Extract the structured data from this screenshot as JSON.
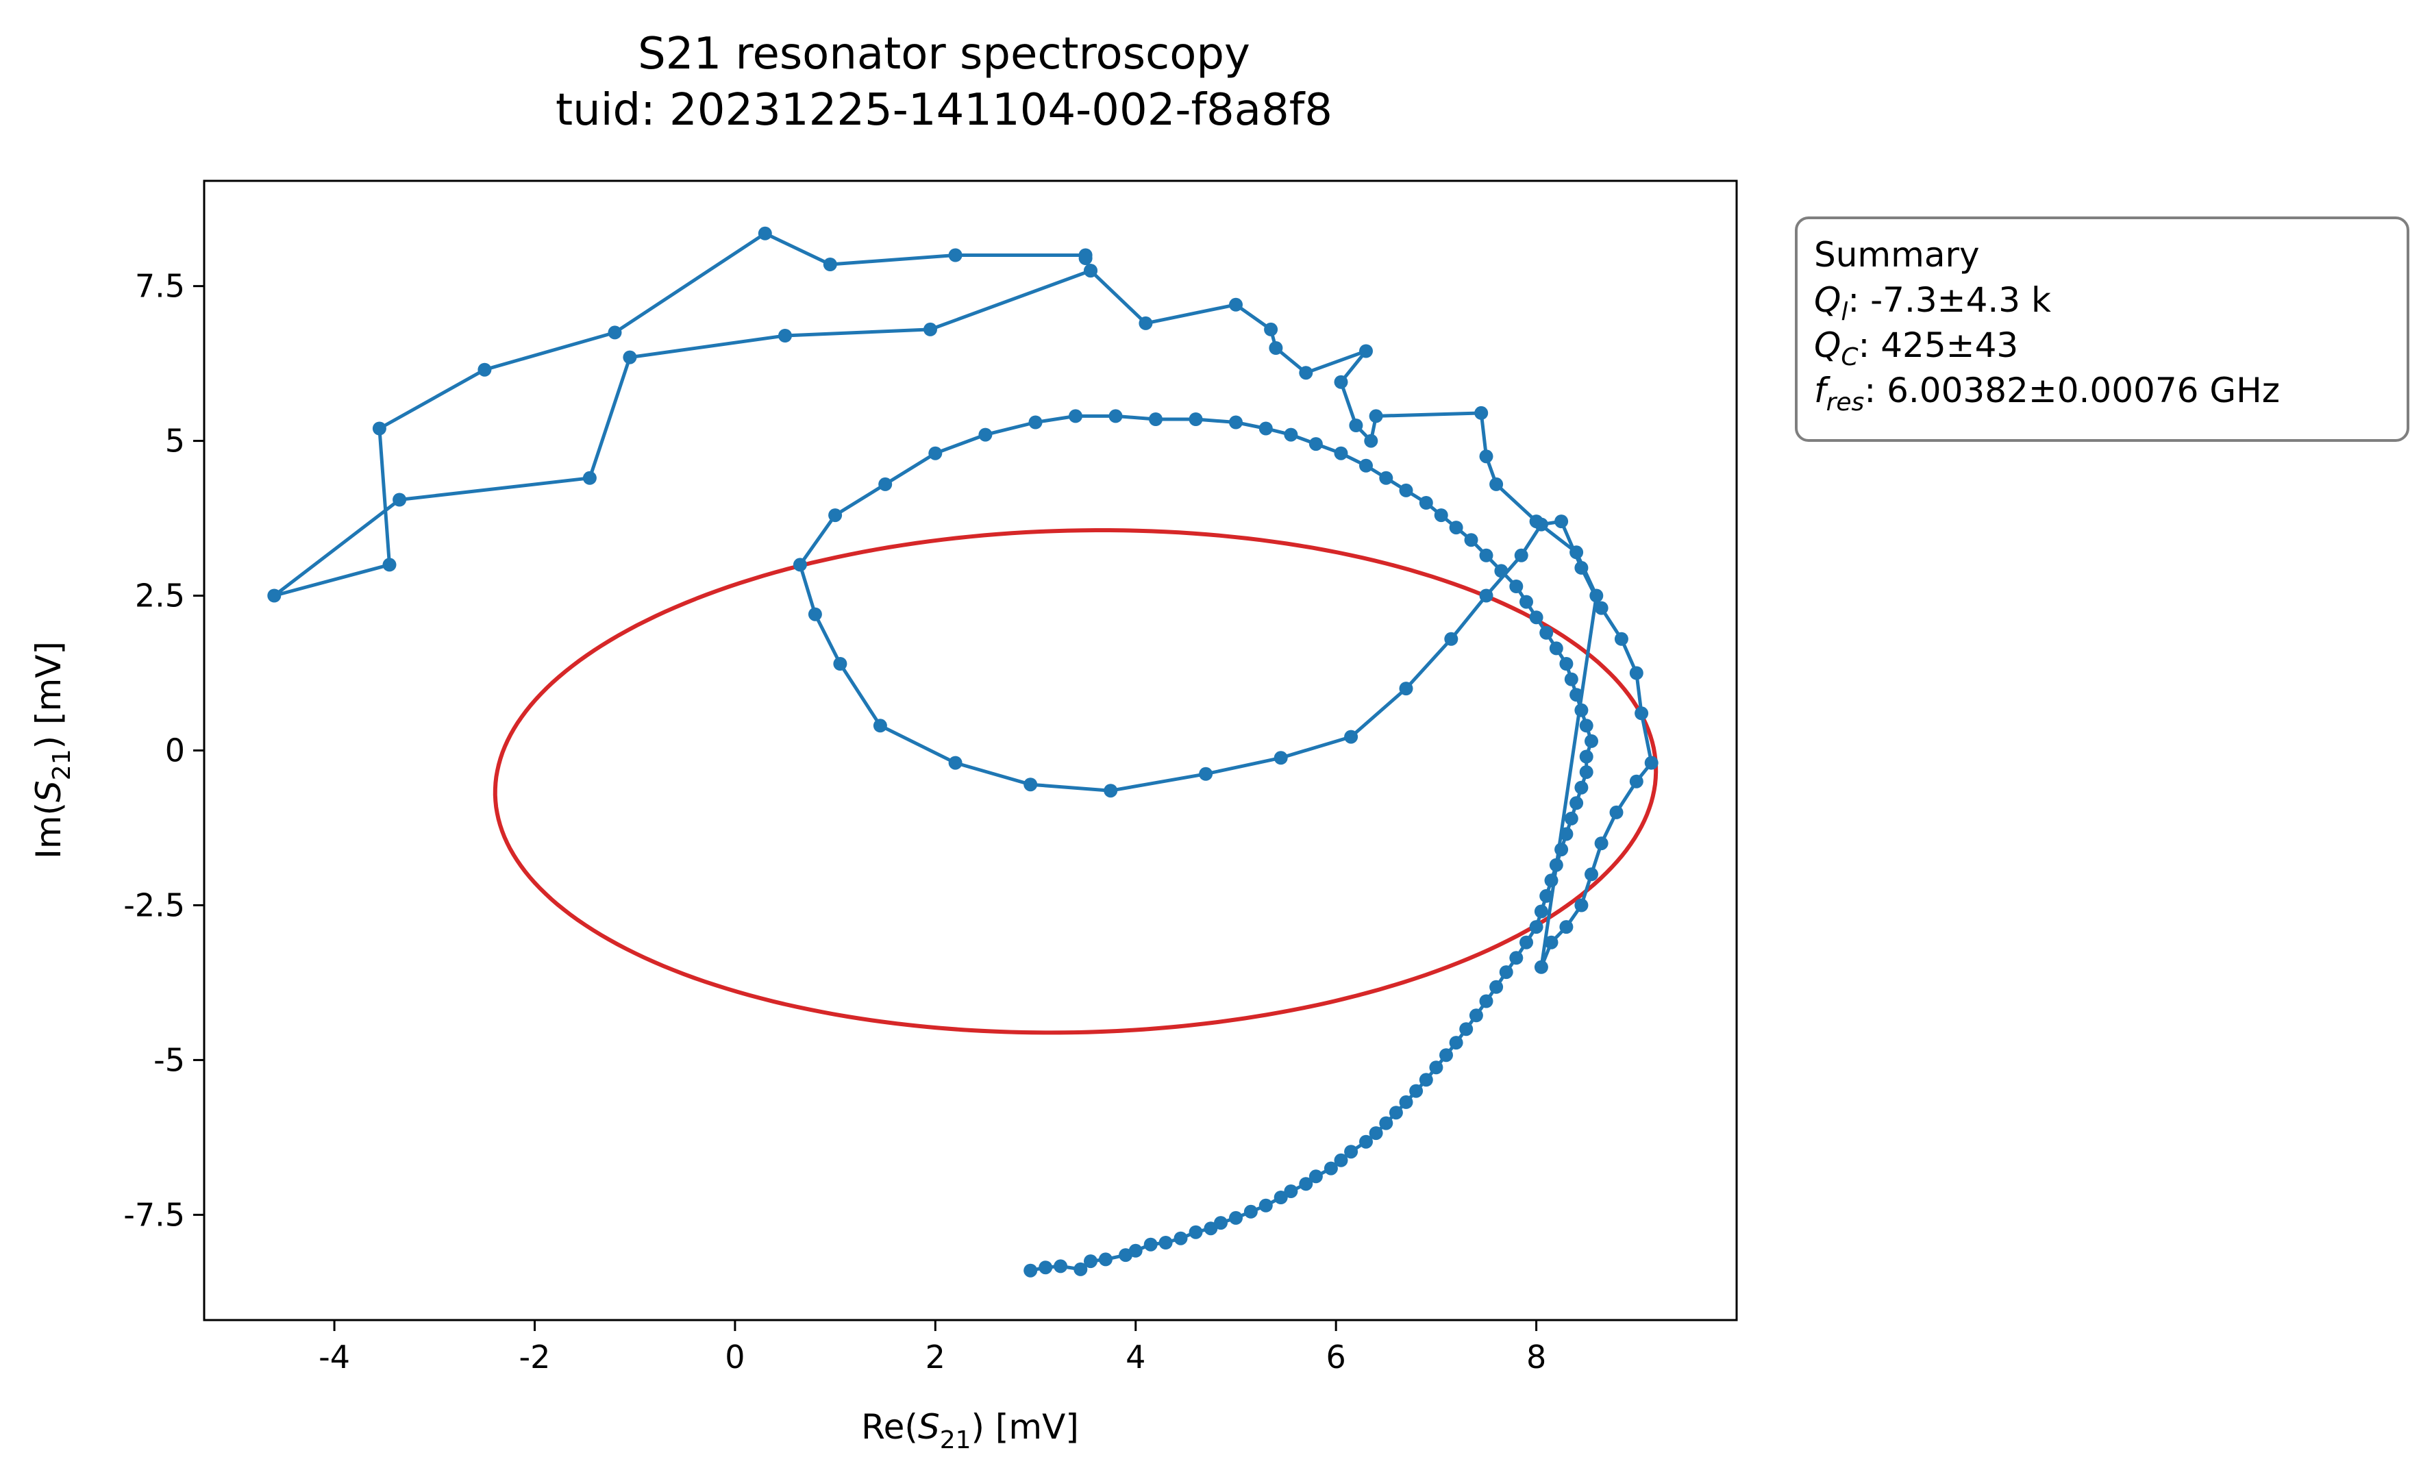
{
  "chart_data": {
    "type": "line",
    "title": "S21 resonator spectroscopy",
    "subtitle": "tuid: 20231225-141104-002-f8a8f8",
    "xlabel": {
      "prefix": "Re(",
      "var": "S",
      "sub": "21",
      "suffix": ") [mV]"
    },
    "ylabel": {
      "prefix": "Im(",
      "var": "S",
      "sub": "21",
      "suffix": ") [mV]"
    },
    "xlim": [
      -5.3,
      10.0
    ],
    "ylim": [
      -9.2,
      9.2
    ],
    "xticks": [
      -4,
      -2,
      0,
      2,
      4,
      6,
      8
    ],
    "xtick_labels": [
      "-4",
      "-2",
      "0",
      "2",
      "4",
      "6",
      "8"
    ],
    "yticks": [
      -7.5,
      -5,
      -2.5,
      0,
      2.5,
      5,
      7.5
    ],
    "ytick_labels": [
      "-7.5",
      "-5",
      "-2.5",
      "0",
      "2.5",
      "5",
      "7.5"
    ],
    "grid": false,
    "series": [
      {
        "color": "#1f77b4",
        "marker": "circle",
        "points": [
          [
            2.95,
            -8.4
          ],
          [
            3.1,
            -8.35
          ],
          [
            3.25,
            -8.33
          ],
          [
            3.45,
            -8.38
          ],
          [
            3.55,
            -8.25
          ],
          [
            3.7,
            -8.22
          ],
          [
            3.9,
            -8.15
          ],
          [
            4.0,
            -8.08
          ],
          [
            4.15,
            -7.98
          ],
          [
            4.3,
            -7.95
          ],
          [
            4.45,
            -7.88
          ],
          [
            4.6,
            -7.78
          ],
          [
            4.75,
            -7.72
          ],
          [
            4.85,
            -7.63
          ],
          [
            5.0,
            -7.55
          ],
          [
            5.15,
            -7.45
          ],
          [
            5.3,
            -7.35
          ],
          [
            5.45,
            -7.22
          ],
          [
            5.55,
            -7.12
          ],
          [
            5.7,
            -7.0
          ],
          [
            5.8,
            -6.88
          ],
          [
            5.95,
            -6.75
          ],
          [
            6.05,
            -6.62
          ],
          [
            6.15,
            -6.48
          ],
          [
            6.3,
            -6.32
          ],
          [
            6.4,
            -6.18
          ],
          [
            6.5,
            -6.02
          ],
          [
            6.6,
            -5.85
          ],
          [
            6.7,
            -5.68
          ],
          [
            6.8,
            -5.5
          ],
          [
            6.9,
            -5.32
          ],
          [
            7.0,
            -5.12
          ],
          [
            7.1,
            -4.92
          ],
          [
            7.2,
            -4.72
          ],
          [
            7.3,
            -4.5
          ],
          [
            7.4,
            -4.28
          ],
          [
            7.5,
            -4.05
          ],
          [
            7.6,
            -3.82
          ],
          [
            7.7,
            -3.58
          ],
          [
            7.8,
            -3.35
          ],
          [
            7.9,
            -3.1
          ],
          [
            8.0,
            -2.85
          ],
          [
            8.05,
            -2.6
          ],
          [
            8.1,
            -2.35
          ],
          [
            8.15,
            -2.1
          ],
          [
            8.2,
            -1.85
          ],
          [
            8.25,
            -1.6
          ],
          [
            8.3,
            -1.35
          ],
          [
            8.35,
            -1.1
          ],
          [
            8.4,
            -0.85
          ],
          [
            8.45,
            -0.6
          ],
          [
            8.5,
            -0.35
          ],
          [
            8.5,
            -0.1
          ],
          [
            8.55,
            0.15
          ],
          [
            8.5,
            0.4
          ],
          [
            8.45,
            0.65
          ],
          [
            8.4,
            0.9
          ],
          [
            8.35,
            1.15
          ],
          [
            8.3,
            1.4
          ],
          [
            8.2,
            1.65
          ],
          [
            8.1,
            1.9
          ],
          [
            8.0,
            2.15
          ],
          [
            7.9,
            2.4
          ],
          [
            7.8,
            2.65
          ],
          [
            7.65,
            2.9
          ],
          [
            7.5,
            3.15
          ],
          [
            7.35,
            3.4
          ],
          [
            7.2,
            3.6
          ],
          [
            7.05,
            3.8
          ],
          [
            6.9,
            4.0
          ],
          [
            6.7,
            4.2
          ],
          [
            6.5,
            4.4
          ],
          [
            6.3,
            4.6
          ],
          [
            6.05,
            4.8
          ],
          [
            5.8,
            4.95
          ],
          [
            5.55,
            5.1
          ],
          [
            5.3,
            5.2
          ],
          [
            5.0,
            5.3
          ],
          [
            4.6,
            5.35
          ],
          [
            4.2,
            5.35
          ],
          [
            3.8,
            5.4
          ],
          [
            3.4,
            5.4
          ],
          [
            3.0,
            5.3
          ],
          [
            2.5,
            5.1
          ],
          [
            2.0,
            4.8
          ],
          [
            1.5,
            4.3
          ],
          [
            1.0,
            3.8
          ],
          [
            0.65,
            3.0
          ],
          [
            0.8,
            2.2
          ],
          [
            1.05,
            1.4
          ],
          [
            1.45,
            0.4
          ],
          [
            2.2,
            -0.2
          ],
          [
            2.95,
            -0.55
          ],
          [
            3.75,
            -0.65
          ],
          [
            4.7,
            -0.38
          ],
          [
            5.45,
            -0.12
          ],
          [
            6.15,
            0.22
          ],
          [
            6.7,
            1.0
          ],
          [
            7.15,
            1.8
          ],
          [
            7.5,
            2.5
          ],
          [
            7.85,
            3.15
          ],
          [
            8.05,
            3.65
          ],
          [
            8.25,
            3.7
          ],
          [
            8.45,
            2.95
          ],
          [
            8.65,
            2.3
          ],
          [
            8.85,
            1.8
          ],
          [
            9.0,
            1.25
          ],
          [
            9.05,
            0.6
          ],
          [
            9.15,
            -0.2
          ],
          [
            9.0,
            -0.5
          ],
          [
            8.8,
            -1.0
          ],
          [
            8.65,
            -1.5
          ],
          [
            8.55,
            -2.0
          ],
          [
            8.45,
            -2.5
          ],
          [
            8.3,
            -2.85
          ],
          [
            8.15,
            -3.1
          ],
          [
            8.05,
            -3.5
          ],
          [
            8.6,
            2.5
          ],
          [
            8.4,
            3.2
          ],
          [
            8.0,
            3.7
          ],
          [
            7.6,
            4.3
          ],
          [
            7.5,
            4.75
          ],
          [
            7.45,
            5.45
          ],
          [
            6.4,
            5.4
          ],
          [
            6.35,
            5.0
          ],
          [
            6.2,
            5.25
          ],
          [
            6.05,
            5.95
          ],
          [
            6.3,
            6.45
          ],
          [
            5.7,
            6.1
          ],
          [
            5.4,
            6.5
          ],
          [
            5.35,
            6.8
          ],
          [
            5.0,
            7.2
          ],
          [
            4.1,
            6.9
          ],
          [
            3.55,
            7.75
          ],
          [
            3.5,
            7.95
          ],
          [
            3.5,
            8.0
          ],
          [
            2.2,
            8.0
          ],
          [
            0.95,
            7.85
          ],
          [
            0.3,
            8.35
          ],
          [
            -1.2,
            6.75
          ],
          [
            -2.5,
            6.15
          ],
          [
            -3.55,
            5.2
          ],
          [
            -3.45,
            3.0
          ],
          [
            -4.6,
            2.5
          ],
          [
            -3.35,
            4.05
          ],
          [
            -1.45,
            4.4
          ],
          [
            -1.05,
            6.35
          ],
          [
            0.5,
            6.7
          ],
          [
            1.95,
            6.8
          ],
          [
            3.55,
            7.75
          ]
        ]
      }
    ],
    "fit": {
      "color": "#d62728"
    },
    "legend": {
      "placement": "outside-top-right",
      "title": "Summary",
      "lines": [
        {
          "var": "Q",
          "sub": "l",
          "value": ": -7.3±4.3 k"
        },
        {
          "var": "Q",
          "sub": "C",
          "value": ": 425±43"
        },
        {
          "var": "f",
          "sub": "res",
          "value": ": 6.00382±0.00076 GHz"
        }
      ]
    }
  }
}
